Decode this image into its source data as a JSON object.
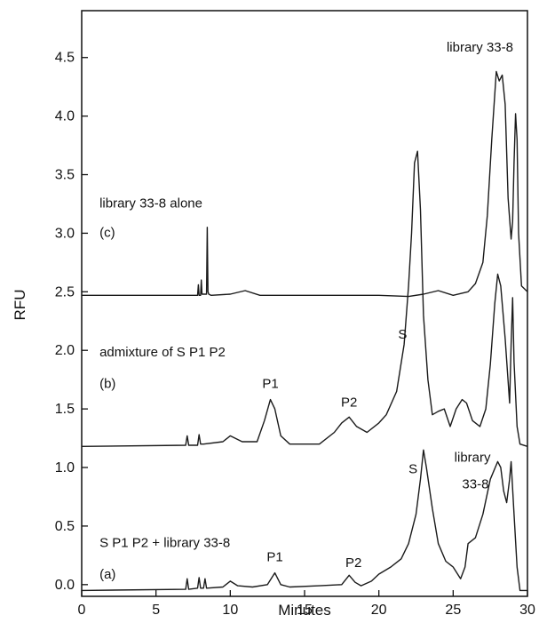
{
  "chart_data": {
    "type": "line",
    "title": "",
    "xlabel": "Minutes",
    "ylabel": "RFU",
    "xlim": [
      0,
      30
    ],
    "ylim": [
      -0.1,
      4.9
    ],
    "xticks": [
      0,
      5,
      10,
      15,
      20,
      25,
      30
    ],
    "xtick_labels": [
      "0",
      "5",
      "10",
      "15",
      "20",
      "25",
      "30"
    ],
    "yticks": [
      0.0,
      0.5,
      1.0,
      1.5,
      2.0,
      2.5,
      3.0,
      3.5,
      4.0,
      4.5
    ],
    "ytick_labels": [
      "0.0",
      "0.5",
      "1.0",
      "1.5",
      "2.0",
      "2.5",
      "3.0",
      "3.5",
      "4.0",
      "4.5"
    ],
    "grid": false,
    "legend": "none",
    "series": [
      {
        "x": [
          0,
          7.0,
          7.1,
          7.2,
          7.8,
          7.9,
          8.0,
          8.2,
          8.3,
          8.4,
          9.5,
          10.0,
          10.5,
          11.5,
          12.5,
          13.0,
          13.4,
          14.0,
          16.0,
          17.5,
          18.0,
          18.4,
          18.8,
          19.5,
          20.0,
          20.8,
          21.5,
          22.0,
          22.5,
          22.8,
          23.0,
          23.2,
          23.6,
          24.0,
          24.5,
          25.0,
          25.5,
          25.8,
          26.0,
          26.5,
          27.0,
          27.5,
          28.0,
          28.2,
          28.4,
          28.6,
          28.8,
          28.9,
          29.1,
          29.3,
          29.5,
          30.0
        ],
        "y": [
          -0.05,
          -0.04,
          0.05,
          -0.04,
          -0.03,
          0.06,
          -0.03,
          -0.03,
          0.05,
          -0.03,
          -0.02,
          0.03,
          -0.01,
          -0.02,
          0.0,
          0.1,
          0.0,
          -0.02,
          -0.01,
          0.0,
          0.08,
          0.02,
          -0.01,
          0.03,
          0.09,
          0.15,
          0.22,
          0.35,
          0.6,
          0.9,
          1.15,
          1.0,
          0.65,
          0.35,
          0.2,
          0.15,
          0.05,
          0.15,
          0.35,
          0.4,
          0.6,
          0.9,
          1.05,
          1.0,
          0.8,
          0.7,
          0.9,
          1.05,
          0.6,
          0.15,
          -0.05,
          -0.05
        ],
        "annotation": "S  P1  P2 + library 33-8",
        "label": "(a)"
      },
      {
        "x": [
          0,
          7.0,
          7.1,
          7.2,
          7.8,
          7.9,
          8.0,
          8.2,
          9.5,
          10.0,
          10.8,
          11.8,
          12.3,
          12.7,
          13.0,
          13.4,
          14.0,
          16.0,
          17.0,
          17.5,
          18.0,
          18.5,
          19.2,
          20.0,
          20.5,
          21.2,
          21.7,
          22.0,
          22.2,
          22.4,
          22.6,
          22.8,
          23.0,
          23.3,
          23.6,
          24.0,
          24.4,
          24.8,
          25.2,
          25.6,
          25.9,
          26.3,
          26.8,
          27.2,
          27.5,
          27.8,
          28.0,
          28.2,
          28.5,
          28.8,
          28.9,
          29.0,
          29.1,
          29.3,
          29.5,
          30.0
        ],
        "y": [
          1.18,
          1.19,
          1.27,
          1.19,
          1.19,
          1.28,
          1.2,
          1.2,
          1.22,
          1.27,
          1.22,
          1.22,
          1.4,
          1.58,
          1.5,
          1.27,
          1.2,
          1.2,
          1.3,
          1.38,
          1.43,
          1.35,
          1.3,
          1.38,
          1.45,
          1.65,
          2.05,
          2.55,
          3.0,
          3.6,
          3.7,
          3.2,
          2.3,
          1.75,
          1.45,
          1.48,
          1.5,
          1.35,
          1.5,
          1.58,
          1.55,
          1.4,
          1.35,
          1.5,
          1.88,
          2.4,
          2.65,
          2.55,
          2.1,
          1.55,
          2.05,
          2.45,
          1.9,
          1.35,
          1.2,
          1.18
        ],
        "annotation": "admixture of S  P1  P2",
        "label": "(b)"
      },
      {
        "x": [
          0,
          7.5,
          7.8,
          7.85,
          7.9,
          8.0,
          8.05,
          8.1,
          8.4,
          8.45,
          8.5,
          8.55,
          8.7,
          10.0,
          11.0,
          12.0,
          20.0,
          22.0,
          23.0,
          24.0,
          25.0,
          26.0,
          26.5,
          27.0,
          27.3,
          27.6,
          27.9,
          28.1,
          28.3,
          28.5,
          28.7,
          28.9,
          29.0,
          29.1,
          29.2,
          29.3,
          29.4,
          29.6,
          30.0
        ],
        "y": [
          2.47,
          2.47,
          2.47,
          2.56,
          2.47,
          2.47,
          2.6,
          2.48,
          2.48,
          3.05,
          2.5,
          2.48,
          2.47,
          2.48,
          2.51,
          2.47,
          2.47,
          2.46,
          2.48,
          2.51,
          2.47,
          2.5,
          2.57,
          2.75,
          3.15,
          3.8,
          4.38,
          4.3,
          4.35,
          4.1,
          3.3,
          2.95,
          3.1,
          3.6,
          4.02,
          3.8,
          3.0,
          2.55,
          2.5
        ],
        "annotation": "library 33-8 alone",
        "label": "(c)"
      }
    ],
    "peak_labels": [
      {
        "text": "library 33-8",
        "x": 26.8,
        "y": 4.55
      },
      {
        "text": "S",
        "x": 21.6,
        "y": 2.1
      },
      {
        "text": "P1",
        "x": 12.7,
        "y": 1.68
      },
      {
        "text": "P2",
        "x": 18.0,
        "y": 1.52
      },
      {
        "text": "S",
        "x": 22.3,
        "y": 0.95
      },
      {
        "text": "library",
        "x": 26.3,
        "y": 1.05
      },
      {
        "text": "33-8",
        "x": 26.5,
        "y": 0.82
      },
      {
        "text": "P1",
        "x": 13.0,
        "y": 0.2
      },
      {
        "text": "P2",
        "x": 18.3,
        "y": 0.15
      }
    ],
    "trace_annotations": [
      {
        "text": "library 33-8 alone",
        "x": 1.2,
        "y": 3.22
      },
      {
        "text": "(c)",
        "x": 1.2,
        "y": 2.97
      },
      {
        "text": "admixture of S  P1  P2",
        "x": 1.2,
        "y": 1.95
      },
      {
        "text": "(b)",
        "x": 1.2,
        "y": 1.68
      },
      {
        "text": "S  P1  P2 + library 33-8",
        "x": 1.2,
        "y": 0.32
      },
      {
        "text": "(a)",
        "x": 1.2,
        "y": 0.05
      }
    ]
  }
}
